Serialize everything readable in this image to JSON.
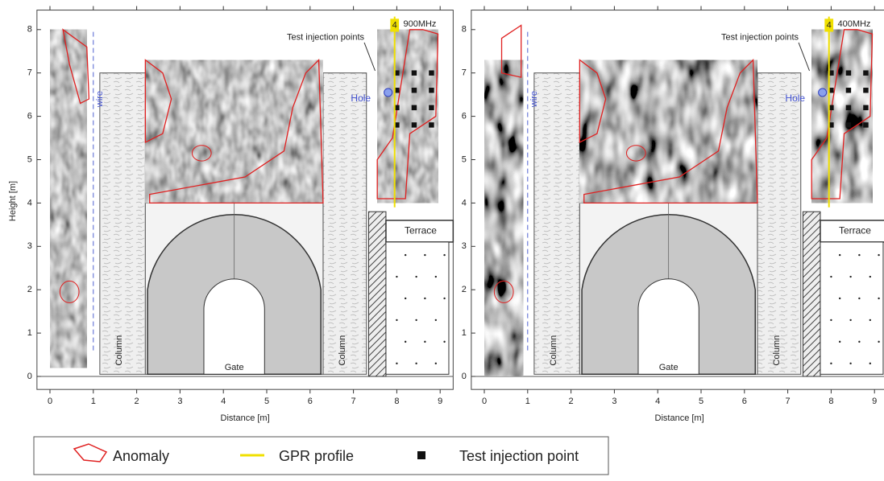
{
  "panels": [
    {
      "frequency": "900MHz",
      "profile_label": "4",
      "injection_label": "Test injection points",
      "hole_label": "Hole",
      "wire_label": "wire",
      "terrace_label": "Terrace",
      "column_left_label": "Column",
      "column_right_label": "Column",
      "gate_label": "Gate",
      "x_axis": {
        "title": "Distance [m]",
        "ticks": [
          0,
          1,
          2,
          3,
          4,
          5,
          6,
          7,
          8,
          9
        ]
      },
      "y_axis": {
        "title": "Height [m]",
        "ticks": [
          0,
          1,
          2,
          3,
          4,
          5,
          6,
          7,
          8
        ]
      }
    },
    {
      "frequency": "400MHz",
      "profile_label": "4",
      "injection_label": "Test injection points",
      "hole_label": "Hole",
      "wire_label": "wire",
      "terrace_label": "Terrace",
      "column_left_label": "Column",
      "column_right_label": "Column",
      "gate_label": "Gate",
      "x_axis": {
        "title": "Distance [m]",
        "ticks": [
          0,
          1,
          2,
          3,
          4,
          5,
          6,
          7,
          8,
          9
        ]
      },
      "y_axis": {
        "ticks": [
          0,
          1,
          2,
          3,
          4,
          5,
          6,
          7,
          8
        ]
      }
    }
  ],
  "legend": [
    {
      "label": "Anomaly"
    },
    {
      "label": "GPR profile"
    },
    {
      "label": "Test injection point"
    }
  ]
}
